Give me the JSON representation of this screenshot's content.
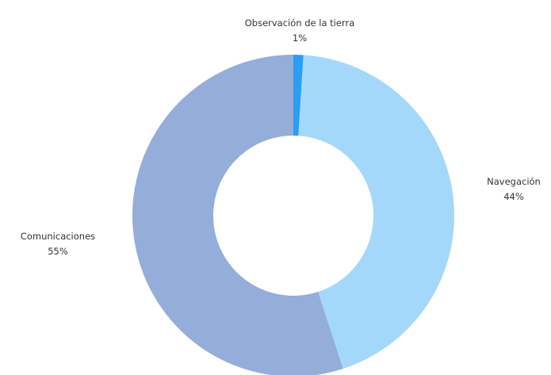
{
  "chart_data": {
    "type": "pie",
    "donut": true,
    "title": "",
    "slices": [
      {
        "label": "Observación de la tierra",
        "value": 1,
        "display": "1%",
        "color": "#2a9df4"
      },
      {
        "label": "Navegación",
        "value": 44,
        "display": "44%",
        "color": "#a4d8fb"
      },
      {
        "label": "Comunicaciones",
        "value": 55,
        "display": "55%",
        "color": "#94add9"
      }
    ],
    "legend": "none"
  }
}
